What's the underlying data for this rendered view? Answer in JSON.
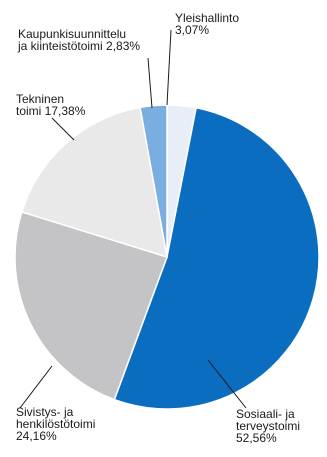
{
  "chart_data": {
    "type": "pie",
    "title": "",
    "start_angle_deg": 0,
    "direction": "clockwise",
    "slices": [
      {
        "label": [
          "Yleishallinto",
          "3,07%"
        ],
        "value": 3.07,
        "color": "#e8eef5"
      },
      {
        "label": [
          "Sosiaali- ja",
          "terveystoimi",
          "52,56%"
        ],
        "value": 52.56,
        "color": "#0a6dbf"
      },
      {
        "label": [
          "Sivistys- ja",
          "henkilöstötoimi",
          "24,16%"
        ],
        "value": 24.16,
        "color": "#c4c4c6"
      },
      {
        "label": [
          "Tekninen",
          "toimi 17,38%"
        ],
        "value": 17.38,
        "color": "#e9e9ea"
      },
      {
        "label": [
          "Kaupunkisuunnittelu",
          "ja kiinteistötoimi 2,83%"
        ],
        "value": 2.83,
        "color": "#7aaee0"
      }
    ]
  }
}
